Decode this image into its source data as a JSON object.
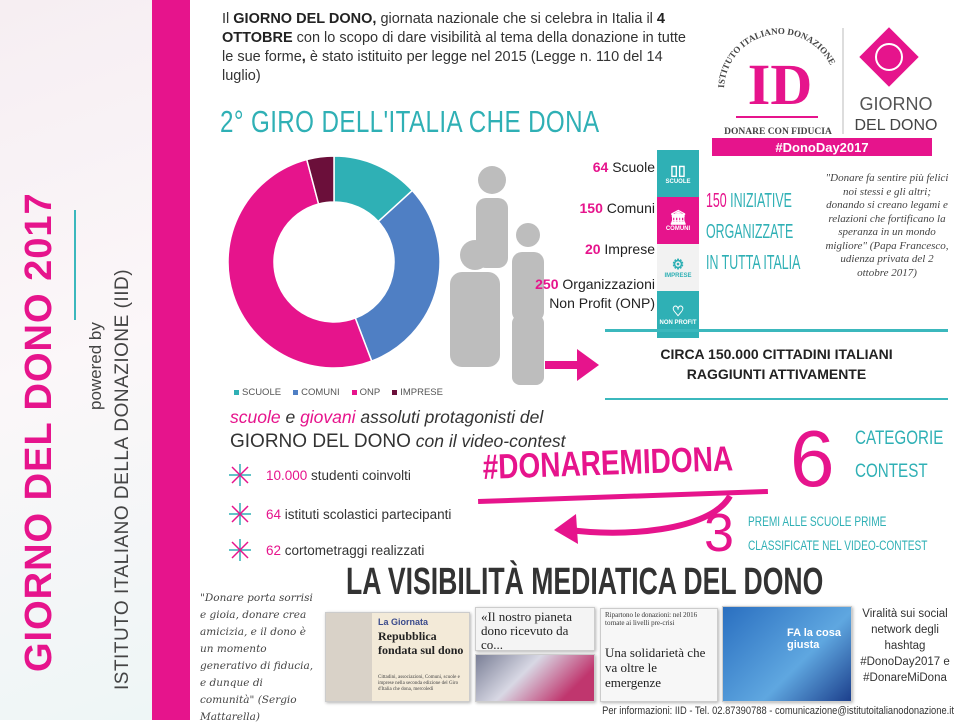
{
  "side": {
    "title": "GIORNO DEL DONO 2017",
    "powered_by": "powered by",
    "org": "ISTITUTO ITALIANO DELLA DONAZIONE (IID)"
  },
  "intro": {
    "p1": "Il ",
    "b1": "GIORNO DEL DONO,",
    "p2": " giornata nazionale che si celebra in Italia il ",
    "b2": "4 OTTOBRE",
    "p3": " con lo scopo di dare visibilità al tema della donazione in tutte le sue forme",
    "b3": ",",
    "p4": " è stato istituito per legge nel 2015 (Legge n. 110 del 14 luglio)"
  },
  "logo": {
    "arc_text": "ISTITUTO ITALIANO DONAZIONE",
    "initials": "ID",
    "tagline": "DONARE CON FIDUCIA",
    "giorno": "GIORNO",
    "del_dono": "DEL DONO",
    "hashtag": "#DonoDay2017"
  },
  "section_title": "2° GIRO DELL'ITALIA CHE DONA",
  "chart_data": {
    "type": "pie",
    "donut": true,
    "categories": [
      "SCUOLE",
      "COMUNI",
      "ONP",
      "IMPRESE"
    ],
    "values": [
      64,
      150,
      250,
      20
    ],
    "colors": [
      "#2fb0b5",
      "#4f7fc4",
      "#e6148c",
      "#6b0f3a"
    ],
    "legend_position": "bottom"
  },
  "stats": [
    {
      "num": "64",
      "label": "Scuole",
      "icon": "book-icon",
      "icon_label": "SCUOLE",
      "color": "#2fb0b5"
    },
    {
      "num": "150",
      "label": "Comuni",
      "icon": "building-icon",
      "icon_label": "COMUNI",
      "color": "#e6148c"
    },
    {
      "num": "20",
      "label": "Imprese",
      "icon": "gears-icon",
      "icon_label": "IMPRESE",
      "color": "#f2f2f2"
    },
    {
      "num": "250",
      "label": "Organizzazioni",
      "label2": "Non Profit (ONP)",
      "icon": "heart-icon",
      "icon_label": "NON PROFIT",
      "color": "#2fb0b5"
    }
  ],
  "icon_brand": "DONODAY",
  "iniziative": {
    "num": "150",
    "l1": "INIZIATIVE",
    "l2": "ORGANIZZATE",
    "l3": "IN TUTTA ITALIA"
  },
  "papa_quote": "\"Donare fa sentire più felici noi stessi e gli altri; donando si creano legami e relazioni che fortificano la speranza in un mondo migliore\" (Papa Francesco, udienza privata del 2 ottobre 2017)",
  "circa": {
    "l1": "CIRCA 150.000 CITTADINI ITALIANI",
    "l2": "RAGGIUNTI ATTIVAMENTE"
  },
  "scuole_line": {
    "w1": "scuole",
    "w2": " e ",
    "w3": "giovani",
    "w4": " assoluti protagonisti del",
    "w5": "GIORNO DEL DONO",
    "w6": " con il video-contest"
  },
  "bullets": [
    {
      "num": "10.000",
      "text": " studenti coinvolti"
    },
    {
      "num": "64",
      "text": " istituti scolastici partecipanti"
    },
    {
      "num": "62",
      "text": " cortometraggi realizzati"
    }
  ],
  "contest_hashtag": "#DONAREMIDONA",
  "categorie": {
    "num": "6",
    "l1": "CATEGORIE",
    "l2": "CONTEST"
  },
  "premi": {
    "num": "3",
    "l1": "PREMI ALLE SCUOLE PRIME",
    "l2": "CLASSIFICATE NEL VIDEO-CONTEST"
  },
  "visibility_title": "LA VISIBILITÀ MEDIATICA DEL DONO",
  "mattarella_quote": "\"Donare porta sorrisi e gioia, donare crea amicizia, e il dono è un momento generativo di fiducia, e dunque di comunità\" (Sergio Mattarella)",
  "clips": {
    "c1_kicker": "La Giornata",
    "c1_head": "Repubblica fondata sul dono",
    "c1_body": "Cittadini, associazioni, Comuni, scuole e imprese nella seconda edizione del Giro d'Italia che dona, mercoledì",
    "c2_head": "«Il nostro pianeta dono ricevuto da co...",
    "c3_top": "Ripartono le donazioni: nel 2016 tornate ai livelli pre-crisi",
    "c3_head": "Una solidarietà che va oltre le emergenze",
    "c4_text": "FA la cosa giusta"
  },
  "viral": "Viralità sui social network degli hashtag #DonoDay2017 e #DonareMiDona",
  "footer": "Per informazioni: IID - Tel. 02.87390788 - comunicazione@istitutoitalianodonazione.it"
}
